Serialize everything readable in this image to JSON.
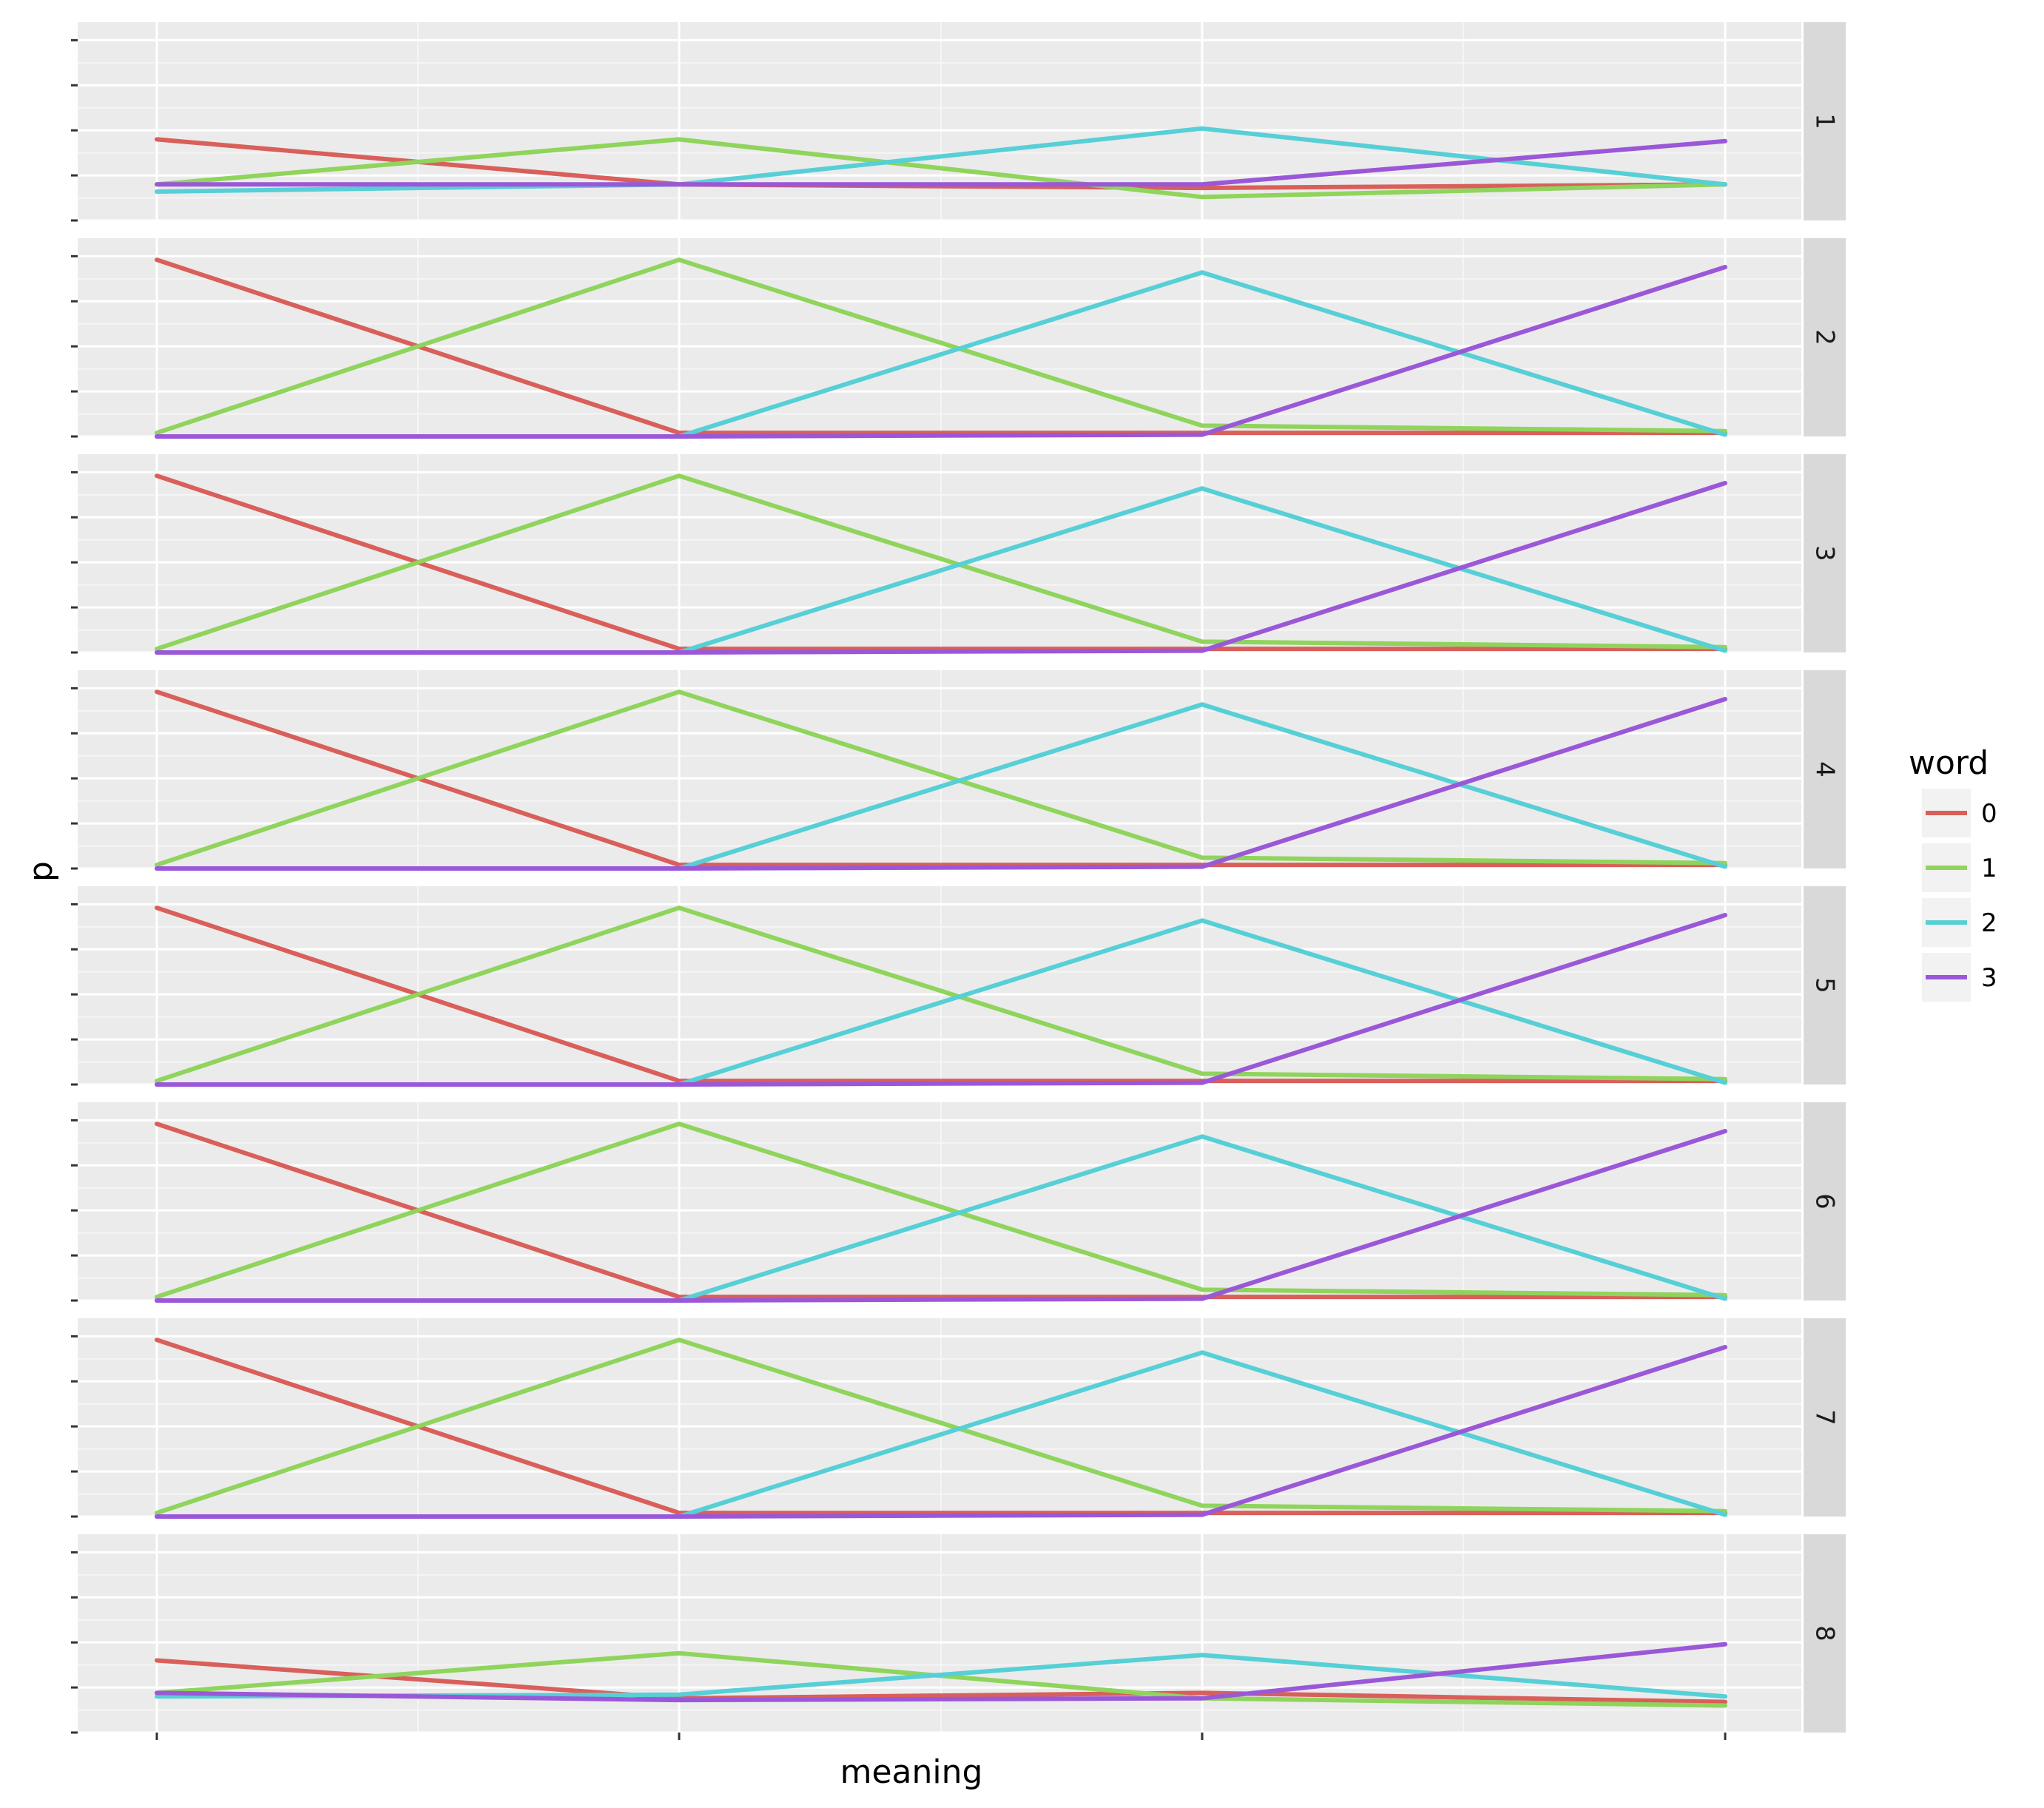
{
  "chart_data": {
    "type": "line",
    "facet": "rows",
    "xlabel": "meaning",
    "ylabel": "p",
    "x": [
      0,
      1,
      2,
      3
    ],
    "ylim": [
      0,
      1.1
    ],
    "grid": true,
    "legend_position": "right",
    "legend_title": "word",
    "series_colors": {
      "0": "#d95f5a",
      "1": "#8fd45c",
      "2": "#57cfd6",
      "3": "#9a58d8"
    },
    "panels": [
      {
        "label": "1",
        "series": [
          {
            "name": "0",
            "values": [
              0.45,
              0.2,
              0.18,
              0.2
            ]
          },
          {
            "name": "1",
            "values": [
              0.2,
              0.45,
              0.13,
              0.2
            ]
          },
          {
            "name": "2",
            "values": [
              0.16,
              0.2,
              0.51,
              0.2
            ]
          },
          {
            "name": "3",
            "values": [
              0.2,
              0.2,
              0.2,
              0.44
            ]
          }
        ]
      },
      {
        "label": "2",
        "series": [
          {
            "name": "0",
            "values": [
              0.98,
              0.02,
              0.02,
              0.02
            ]
          },
          {
            "name": "1",
            "values": [
              0.02,
              0.98,
              0.06,
              0.03
            ]
          },
          {
            "name": "2",
            "values": [
              0.0,
              0.0,
              0.91,
              0.01
            ]
          },
          {
            "name": "3",
            "values": [
              0.0,
              0.0,
              0.01,
              0.94
            ]
          }
        ]
      },
      {
        "label": "3",
        "series": [
          {
            "name": "0",
            "values": [
              0.98,
              0.02,
              0.02,
              0.02
            ]
          },
          {
            "name": "1",
            "values": [
              0.02,
              0.98,
              0.06,
              0.03
            ]
          },
          {
            "name": "2",
            "values": [
              0.0,
              0.0,
              0.91,
              0.01
            ]
          },
          {
            "name": "3",
            "values": [
              0.0,
              0.0,
              0.01,
              0.94
            ]
          }
        ]
      },
      {
        "label": "4",
        "series": [
          {
            "name": "0",
            "values": [
              0.98,
              0.02,
              0.02,
              0.02
            ]
          },
          {
            "name": "1",
            "values": [
              0.02,
              0.98,
              0.06,
              0.03
            ]
          },
          {
            "name": "2",
            "values": [
              0.0,
              0.0,
              0.91,
              0.01
            ]
          },
          {
            "name": "3",
            "values": [
              0.0,
              0.0,
              0.01,
              0.94
            ]
          }
        ]
      },
      {
        "label": "5",
        "series": [
          {
            "name": "0",
            "values": [
              0.98,
              0.02,
              0.02,
              0.02
            ]
          },
          {
            "name": "1",
            "values": [
              0.02,
              0.98,
              0.06,
              0.03
            ]
          },
          {
            "name": "2",
            "values": [
              0.0,
              0.0,
              0.91,
              0.01
            ]
          },
          {
            "name": "3",
            "values": [
              0.0,
              0.0,
              0.01,
              0.94
            ]
          }
        ]
      },
      {
        "label": "6",
        "series": [
          {
            "name": "0",
            "values": [
              0.98,
              0.02,
              0.02,
              0.02
            ]
          },
          {
            "name": "1",
            "values": [
              0.02,
              0.98,
              0.06,
              0.03
            ]
          },
          {
            "name": "2",
            "values": [
              0.0,
              0.0,
              0.91,
              0.01
            ]
          },
          {
            "name": "3",
            "values": [
              0.0,
              0.0,
              0.01,
              0.94
            ]
          }
        ]
      },
      {
        "label": "7",
        "series": [
          {
            "name": "0",
            "values": [
              0.98,
              0.02,
              0.02,
              0.02
            ]
          },
          {
            "name": "1",
            "values": [
              0.02,
              0.98,
              0.06,
              0.03
            ]
          },
          {
            "name": "2",
            "values": [
              0.0,
              0.0,
              0.91,
              0.01
            ]
          },
          {
            "name": "3",
            "values": [
              0.0,
              0.0,
              0.01,
              0.94
            ]
          }
        ]
      },
      {
        "label": "8",
        "series": [
          {
            "name": "0",
            "values": [
              0.4,
              0.19,
              0.22,
              0.17
            ]
          },
          {
            "name": "1",
            "values": [
              0.22,
              0.44,
              0.19,
              0.15
            ]
          },
          {
            "name": "2",
            "values": [
              0.2,
              0.21,
              0.43,
              0.2
            ]
          },
          {
            "name": "3",
            "values": [
              0.22,
              0.18,
              0.19,
              0.49
            ]
          }
        ]
      }
    ]
  }
}
